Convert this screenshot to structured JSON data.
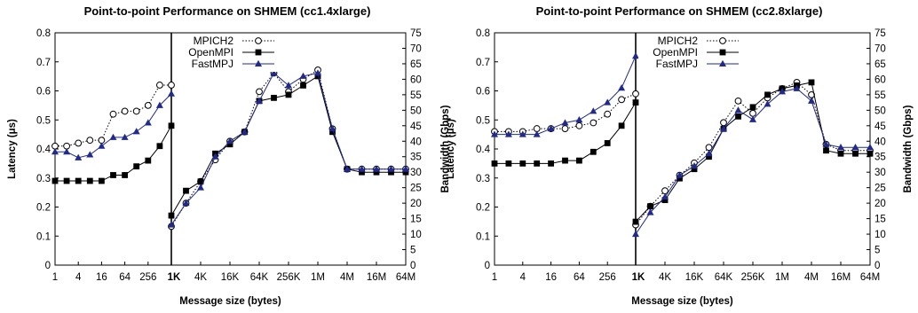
{
  "chart_data": [
    {
      "type": "line",
      "title": "Point-to-point Performance on SHMEM (cc1.4xlarge)",
      "xlabel": "Message size (bytes)",
      "ylabel_left": "Latency (μs)",
      "ylabel_right": "Bandwidth (Gbps)",
      "legend_position": "top-left",
      "ylim_left": [
        0,
        0.8
      ],
      "ylim_right": [
        0,
        75
      ],
      "latency_ticks": [
        "0",
        "0.1",
        "0.2",
        "0.3",
        "0.4",
        "0.5",
        "0.6",
        "0.7",
        "0.8"
      ],
      "bandwidth_ticks": [
        "0",
        "5",
        "10",
        "15",
        "20",
        "25",
        "30",
        "35",
        "40",
        "45",
        "50",
        "55",
        "60",
        "65",
        "70",
        "75"
      ],
      "latency_x_ticks": [
        "1",
        "4",
        "16",
        "64",
        "256",
        "1K"
      ],
      "bandwidth_x_ticks": [
        "4K",
        "16K",
        "64K",
        "256K",
        "1M",
        "4M",
        "16M",
        "64M"
      ],
      "latency_x": [
        "1",
        "2",
        "4",
        "8",
        "16",
        "32",
        "64",
        "128",
        "256",
        "512",
        "1K"
      ],
      "bandwidth_x": [
        "1K",
        "2K",
        "4K",
        "8K",
        "16K",
        "32K",
        "64K",
        "128K",
        "256K",
        "512K",
        "1M",
        "2M",
        "4M",
        "8M",
        "16M",
        "32M",
        "64M"
      ],
      "series": [
        {
          "name": "MPICH2",
          "color": "#000000",
          "marker": "open-circle",
          "line": "dotted",
          "latency": [
            0.41,
            0.41,
            0.42,
            0.43,
            0.43,
            0.52,
            0.53,
            0.53,
            0.55,
            0.62,
            0.62
          ],
          "bandwidth": [
            12.5,
            20,
            27,
            34,
            40,
            43,
            56,
            62,
            56,
            60,
            63,
            44,
            31,
            31,
            31,
            31,
            31
          ]
        },
        {
          "name": "OpenMPI",
          "color": "#000000",
          "marker": "filled-square",
          "line": "solid",
          "latency": [
            0.29,
            0.29,
            0.29,
            0.29,
            0.29,
            0.31,
            0.31,
            0.34,
            0.36,
            0.41,
            0.48
          ],
          "bandwidth": [
            16,
            24,
            27,
            36,
            39,
            43,
            53,
            54,
            55,
            58,
            61,
            43,
            31,
            30,
            30,
            30,
            30
          ]
        },
        {
          "name": "FastMPJ",
          "color": "#1f2a8c",
          "marker": "filled-triangle",
          "line": "solid",
          "latency": [
            0.39,
            0.39,
            0.37,
            0.38,
            0.41,
            0.44,
            0.44,
            0.46,
            0.49,
            0.55,
            0.59
          ],
          "bandwidth": [
            13,
            20,
            25,
            35,
            40,
            43,
            53,
            62,
            58,
            61,
            62,
            44,
            31,
            31,
            31,
            31,
            31
          ]
        }
      ]
    },
    {
      "type": "line",
      "title": "Point-to-point Performance on SHMEM (cc2.8xlarge)",
      "xlabel": "Message size (bytes)",
      "ylabel_left": "Latency (μs)",
      "ylabel_right": "Bandwidth (Gbps)",
      "legend_position": "top-left",
      "ylim_left": [
        0,
        0.8
      ],
      "ylim_right": [
        0,
        75
      ],
      "latency_ticks": [
        "0",
        "0.1",
        "0.2",
        "0.3",
        "0.4",
        "0.5",
        "0.6",
        "0.7",
        "0.8"
      ],
      "bandwidth_ticks": [
        "0",
        "5",
        "10",
        "15",
        "20",
        "25",
        "30",
        "35",
        "40",
        "45",
        "50",
        "55",
        "60",
        "65",
        "70",
        "75"
      ],
      "latency_x_ticks": [
        "1",
        "4",
        "16",
        "64",
        "256",
        "1K"
      ],
      "bandwidth_x_ticks": [
        "4K",
        "16K",
        "64K",
        "256K",
        "1M",
        "4M",
        "16M",
        "64M"
      ],
      "latency_x": [
        "1",
        "2",
        "4",
        "8",
        "16",
        "32",
        "64",
        "128",
        "256",
        "512",
        "1K"
      ],
      "bandwidth_x": [
        "1K",
        "2K",
        "4K",
        "8K",
        "16K",
        "32K",
        "64K",
        "128K",
        "256K",
        "512K",
        "1M",
        "2M",
        "4M",
        "8M",
        "16M",
        "32M",
        "64M"
      ],
      "series": [
        {
          "name": "MPICH2",
          "color": "#000000",
          "marker": "open-circle",
          "line": "dotted",
          "latency": [
            0.46,
            0.46,
            0.46,
            0.47,
            0.47,
            0.47,
            0.48,
            0.49,
            0.52,
            0.57,
            0.59
          ],
          "bandwidth": [
            13,
            19,
            24,
            29,
            33,
            38,
            46,
            53,
            49,
            54,
            57,
            59,
            55,
            39,
            37,
            37,
            37
          ]
        },
        {
          "name": "OpenMPI",
          "color": "#000000",
          "marker": "filled-square",
          "line": "solid",
          "latency": [
            0.35,
            0.35,
            0.35,
            0.35,
            0.35,
            0.36,
            0.36,
            0.39,
            0.42,
            0.48,
            0.56
          ],
          "bandwidth": [
            14,
            19,
            21,
            28,
            31,
            35,
            44,
            48,
            51,
            55,
            57,
            58,
            59,
            37,
            36,
            36,
            36
          ]
        },
        {
          "name": "FastMPJ",
          "color": "#1f2a8c",
          "marker": "filled-triangle",
          "line": "solid",
          "latency": [
            0.45,
            0.45,
            0.45,
            0.45,
            0.47,
            0.49,
            0.5,
            0.53,
            0.56,
            0.61,
            0.72
          ],
          "bandwidth": [
            10,
            17,
            22,
            29,
            32,
            36,
            44,
            50,
            47,
            52,
            56,
            57,
            53,
            39,
            38,
            38,
            38
          ]
        }
      ]
    }
  ]
}
